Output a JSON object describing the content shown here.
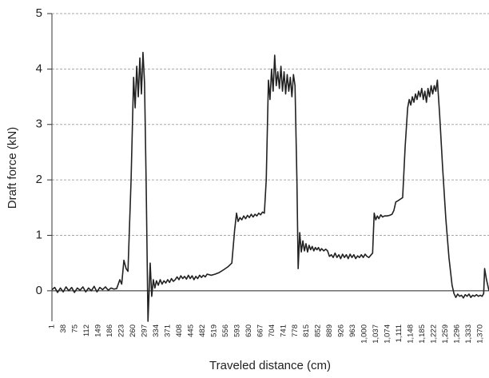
{
  "chart_data": {
    "type": "line",
    "x_label": "Traveled distance (cm)",
    "y_label": "Draft force (kN)",
    "color": "#222222",
    "grid": true,
    "xlim": [
      1,
      1398
    ],
    "ylim": [
      -0.55,
      5
    ],
    "yticks": [
      0,
      1,
      2,
      3,
      4,
      5
    ],
    "xticks": [
      1,
      38,
      75,
      112,
      149,
      186,
      223,
      260,
      297,
      334,
      371,
      408,
      445,
      482,
      519,
      556,
      593,
      630,
      667,
      704,
      741,
      778,
      815,
      852,
      889,
      926,
      963,
      {
        "value": 1000,
        "label": "1,000"
      },
      {
        "value": 1037,
        "label": "1,037"
      },
      {
        "value": 1074,
        "label": "1,074"
      },
      {
        "value": 1111,
        "label": "1,111"
      },
      {
        "value": 1148,
        "label": "1,148"
      },
      {
        "value": 1185,
        "label": "1,185"
      },
      {
        "value": 1222,
        "label": "1,222"
      },
      {
        "value": 1259,
        "label": "1,259"
      },
      {
        "value": 1296,
        "label": "1,296"
      },
      {
        "value": 1333,
        "label": "1,333"
      },
      {
        "value": 1370,
        "label": "1,370"
      }
    ],
    "x": [
      1,
      10,
      19,
      28,
      37,
      46,
      55,
      64,
      73,
      82,
      91,
      100,
      109,
      118,
      127,
      136,
      145,
      154,
      163,
      172,
      181,
      190,
      199,
      208,
      218,
      224,
      231,
      238,
      244,
      254,
      262,
      267,
      272,
      277,
      282,
      287,
      292,
      297,
      302,
      308,
      315,
      320,
      325,
      330,
      335,
      341,
      347,
      353,
      359,
      365,
      371,
      377,
      383,
      389,
      395,
      401,
      407,
      413,
      419,
      425,
      431,
      437,
      443,
      449,
      455,
      461,
      467,
      473,
      479,
      485,
      491,
      497,
      510,
      523,
      536,
      550,
      563,
      576,
      585,
      591,
      596,
      602,
      608,
      614,
      620,
      626,
      632,
      638,
      644,
      650,
      656,
      662,
      668,
      674,
      680,
      686,
      693,
      698,
      703,
      708,
      713,
      718,
      723,
      728,
      733,
      738,
      743,
      748,
      753,
      758,
      763,
      768,
      773,
      778,
      784,
      788,
      793,
      798,
      803,
      808,
      813,
      818,
      823,
      828,
      833,
      838,
      843,
      848,
      853,
      858,
      863,
      870,
      876,
      882,
      888,
      894,
      900,
      906,
      912,
      918,
      924,
      930,
      936,
      942,
      948,
      954,
      960,
      966,
      972,
      978,
      984,
      990,
      996,
      1002,
      1008,
      1014,
      1020,
      1026,
      1031,
      1036,
      1041,
      1046,
      1052,
      1058,
      1064,
      1072,
      1080,
      1088,
      1094,
      1100,
      1106,
      1114,
      1122,
      1130,
      1138,
      1143,
      1148,
      1153,
      1158,
      1163,
      1168,
      1173,
      1178,
      1183,
      1188,
      1193,
      1198,
      1203,
      1208,
      1213,
      1218,
      1223,
      1228,
      1233,
      1240,
      1250,
      1260,
      1270,
      1280,
      1286,
      1292,
      1298,
      1304,
      1310,
      1316,
      1322,
      1328,
      1334,
      1340,
      1346,
      1352,
      1358,
      1364,
      1370,
      1376,
      1381,
      1384,
      1390,
      1398
    ],
    "values": [
      0.02,
      0.06,
      -0.03,
      0.05,
      -0.02,
      0.07,
      0.0,
      0.06,
      -0.03,
      0.05,
      0.01,
      0.07,
      -0.02,
      0.05,
      0.0,
      0.08,
      -0.02,
      0.06,
      0.02,
      0.07,
      0.01,
      0.05,
      0.03,
      0.04,
      0.2,
      0.12,
      0.55,
      0.4,
      0.35,
      2.0,
      3.85,
      3.3,
      4.05,
      3.5,
      4.2,
      3.55,
      4.3,
      3.75,
      2.0,
      -0.55,
      0.5,
      -0.1,
      0.2,
      0.05,
      0.18,
      0.1,
      0.2,
      0.12,
      0.18,
      0.14,
      0.2,
      0.15,
      0.22,
      0.17,
      0.2,
      0.25,
      0.2,
      0.27,
      0.22,
      0.26,
      0.21,
      0.28,
      0.22,
      0.27,
      0.2,
      0.26,
      0.22,
      0.28,
      0.24,
      0.28,
      0.25,
      0.3,
      0.28,
      0.3,
      0.33,
      0.38,
      0.43,
      0.5,
      1.1,
      1.4,
      1.25,
      1.32,
      1.28,
      1.35,
      1.3,
      1.36,
      1.32,
      1.38,
      1.33,
      1.38,
      1.35,
      1.4,
      1.37,
      1.42,
      1.4,
      2.0,
      3.8,
      3.45,
      4.0,
      3.6,
      4.25,
      3.7,
      3.95,
      3.65,
      4.05,
      3.6,
      3.95,
      3.55,
      3.9,
      3.6,
      3.85,
      3.5,
      3.9,
      3.7,
      2.0,
      0.4,
      1.05,
      0.7,
      0.9,
      0.72,
      0.85,
      0.7,
      0.82,
      0.74,
      0.8,
      0.72,
      0.78,
      0.74,
      0.78,
      0.72,
      0.76,
      0.72,
      0.75,
      0.72,
      0.62,
      0.65,
      0.6,
      0.68,
      0.6,
      0.65,
      0.58,
      0.66,
      0.6,
      0.65,
      0.58,
      0.66,
      0.6,
      0.65,
      0.58,
      0.63,
      0.6,
      0.65,
      0.6,
      0.66,
      0.62,
      0.6,
      0.64,
      0.68,
      1.4,
      1.28,
      1.35,
      1.3,
      1.37,
      1.33,
      1.35,
      1.35,
      1.36,
      1.38,
      1.45,
      1.6,
      1.62,
      1.65,
      1.68,
      2.6,
      3.3,
      3.45,
      3.35,
      3.5,
      3.4,
      3.55,
      3.45,
      3.6,
      3.5,
      3.65,
      3.45,
      3.6,
      3.4,
      3.65,
      3.5,
      3.7,
      3.55,
      3.7,
      3.6,
      3.8,
      3.2,
      2.2,
      1.3,
      0.6,
      0.1,
      -0.05,
      -0.12,
      -0.06,
      -0.1,
      -0.08,
      -0.13,
      -0.07,
      -0.1,
      -0.06,
      -0.12,
      -0.08,
      -0.1,
      -0.07,
      -0.1,
      -0.08,
      -0.1,
      -0.05,
      0.4,
      0.2,
      0.0
    ]
  }
}
